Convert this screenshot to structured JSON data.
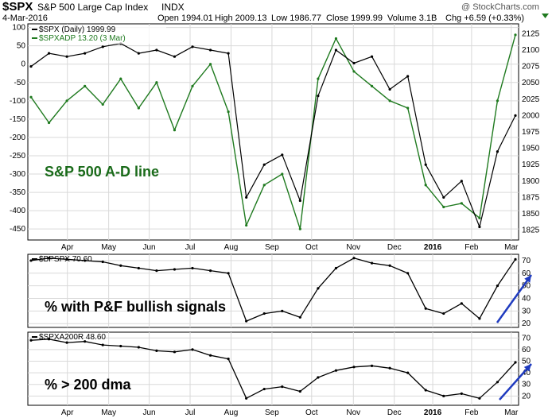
{
  "header": {
    "symbol": "$SPX",
    "name": "S&P 500 Large Cap Index",
    "exchange": "INDX",
    "date": "4-Mar-2016",
    "open": "Open 1994.01",
    "high": "High 2009.13",
    "low": "Low 1986.77",
    "close": "Close 1999.99",
    "volume": "Volume 3.1B",
    "change": "Chg +6.59 (+0.33%)",
    "watermark": "@ StockCharts.com"
  },
  "colors": {
    "price": "#000000",
    "ad_line": "#1f7a1f",
    "annotation_green": "#1a6b1a",
    "arrow": "#1f3bbf",
    "frame": "#000000",
    "grid": "#d9d9d9"
  },
  "chart_data": [
    {
      "type": "line",
      "panel": "main",
      "x": [
        "Mar 14",
        "Mar 28",
        "Apr 11",
        "Apr 25",
        "May 9",
        "May 23",
        "Jun 6",
        "Jun 20",
        "Jul 4",
        "Jul 18",
        "Aug 1",
        "Aug 15",
        "Aug 24",
        "Sep 7",
        "Sep 21",
        "Oct 5",
        "Oct 19",
        "Nov 2",
        "Nov 16",
        "Nov 30",
        "Dec 14",
        "Dec 28",
        "Jan 11",
        "Jan 20",
        "Feb 1",
        "Feb 11",
        "Feb 22",
        "Mar 4"
      ],
      "x_ticks": [
        "Apr",
        "May",
        "Jun",
        "Jul",
        "Aug",
        "Sep",
        "Oct",
        "Nov",
        "Dec",
        "2016",
        "Feb",
        "Mar"
      ],
      "series": [
        {
          "name": "$SPX (Daily) 1999.99",
          "axis": "right",
          "values": [
            2075,
            2095,
            2090,
            2095,
            2105,
            2110,
            2095,
            2100,
            2090,
            2105,
            2100,
            2095,
            1875,
            1925,
            1940,
            1870,
            2030,
            2100,
            2080,
            2090,
            2040,
            2060,
            1925,
            1875,
            1900,
            1830,
            1945,
            2000
          ]
        },
        {
          "name": "$SPXADP 13.20 (3 Mar)",
          "axis": "left",
          "values": [
            -90,
            -160,
            -100,
            -60,
            -110,
            -40,
            -120,
            -50,
            -180,
            -60,
            0,
            -130,
            -440,
            -330,
            -300,
            -450,
            -40,
            70,
            -20,
            -60,
            -100,
            -120,
            -330,
            -390,
            -380,
            -420,
            -100,
            80
          ]
        }
      ],
      "y_left_ticks": [
        100,
        50,
        0,
        -50,
        -100,
        -150,
        -200,
        -250,
        -300,
        -350,
        -400,
        -450
      ],
      "y_right_ticks": [
        2125,
        2100,
        2075,
        2050,
        2025,
        2000,
        1975,
        1950,
        1925,
        1900,
        1875,
        1850,
        1825
      ],
      "ylim_left": [
        -480,
        110
      ],
      "ylim_right": [
        1810,
        2140
      ],
      "annotation": "S&P 500 A-D line"
    },
    {
      "type": "line",
      "panel": "bpi",
      "series": [
        {
          "name": "$BPSPX 70.60",
          "values": [
            70,
            72,
            71,
            70,
            69,
            66,
            64,
            62,
            63,
            64,
            62,
            60,
            22,
            28,
            30,
            25,
            48,
            64,
            72,
            68,
            66,
            60,
            32,
            28,
            36,
            24,
            50,
            71
          ]
        }
      ],
      "y_ticks": [
        70,
        60,
        50,
        40,
        30,
        20
      ],
      "ylim": [
        17,
        75
      ],
      "annotation": "% with P&F bullish signals"
    },
    {
      "type": "line",
      "panel": "dma",
      "series": [
        {
          "name": "$SPXA200R 48.60",
          "values": [
            68,
            69,
            66,
            67,
            64,
            63,
            62,
            59,
            58,
            60,
            55,
            52,
            18,
            26,
            28,
            24,
            36,
            42,
            45,
            46,
            44,
            40,
            25,
            20,
            22,
            18,
            32,
            49
          ]
        }
      ],
      "y_ticks": [
        70,
        60,
        50,
        40,
        30,
        20
      ],
      "ylim": [
        12,
        75
      ],
      "annotation": "% > 200 dma"
    }
  ]
}
